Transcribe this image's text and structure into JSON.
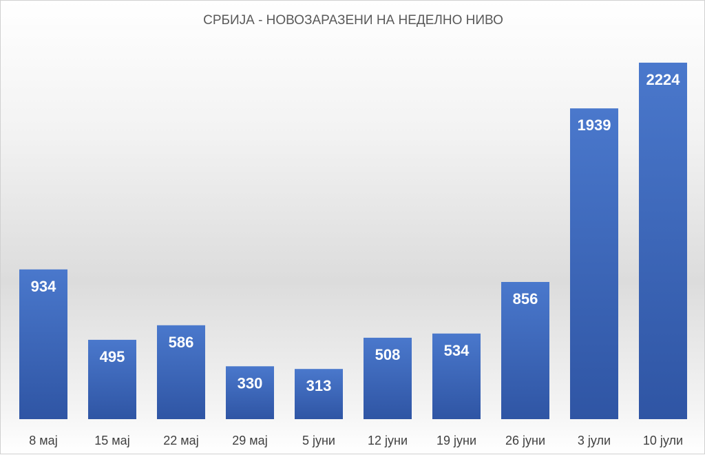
{
  "chart_data": {
    "type": "bar",
    "title": "СРБИЈА - НОВОЗАРАЗЕНИ НА НЕДЕЛНО НИВО",
    "categories": [
      "8 мај",
      "15 мај",
      "22 мај",
      "29 мај",
      "5 јуни",
      "12 јуни",
      "19 јуни",
      "26 јуни",
      "3 јули",
      "10 јули"
    ],
    "values": [
      934,
      495,
      586,
      330,
      313,
      508,
      534,
      856,
      1939,
      2224
    ],
    "data_labels": [
      "934",
      "495",
      "586",
      "330",
      "313",
      "508",
      "534",
      "856",
      "1939",
      "2224"
    ],
    "ylim": [
      0,
      2400
    ],
    "grid": false,
    "legend": "none",
    "colors": {
      "bar_top": "#4a78cc",
      "bar_bottom": "#2f55a4",
      "label": "#ffffff"
    }
  }
}
